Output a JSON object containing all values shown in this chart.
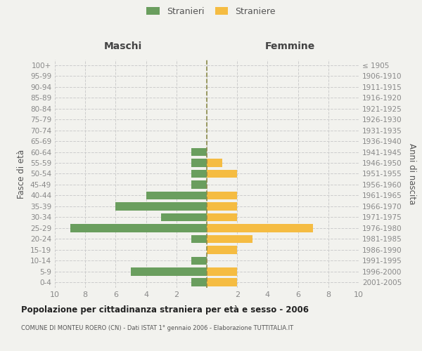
{
  "age_groups": [
    "0-4",
    "5-9",
    "10-14",
    "15-19",
    "20-24",
    "25-29",
    "30-34",
    "35-39",
    "40-44",
    "45-49",
    "50-54",
    "55-59",
    "60-64",
    "65-69",
    "70-74",
    "75-79",
    "80-84",
    "85-89",
    "90-94",
    "95-99",
    "100+"
  ],
  "birth_years": [
    "2001-2005",
    "1996-2000",
    "1991-1995",
    "1986-1990",
    "1981-1985",
    "1976-1980",
    "1971-1975",
    "1966-1970",
    "1961-1965",
    "1956-1960",
    "1951-1955",
    "1946-1950",
    "1941-1945",
    "1936-1940",
    "1931-1935",
    "1926-1930",
    "1921-1925",
    "1916-1920",
    "1911-1915",
    "1906-1910",
    "≤ 1905"
  ],
  "males": [
    1,
    5,
    1,
    0,
    1,
    9,
    3,
    6,
    4,
    1,
    1,
    1,
    1,
    0,
    0,
    0,
    0,
    0,
    0,
    0,
    0
  ],
  "females": [
    2,
    2,
    0,
    2,
    3,
    7,
    2,
    2,
    2,
    0,
    2,
    1,
    0,
    0,
    0,
    0,
    0,
    0,
    0,
    0,
    0
  ],
  "male_color": "#6a9e5e",
  "female_color": "#f5bc42",
  "background_color": "#f2f2ee",
  "grid_color": "#cccccc",
  "center_line_color": "#8b8b4b",
  "title": "Popolazione per cittadinanza straniera per età e sesso - 2006",
  "subtitle": "COMUNE DI MONTEU ROERO (CN) - Dati ISTAT 1° gennaio 2006 - Elaborazione TUTTITALIA.IT",
  "xlabel_left": "Maschi",
  "xlabel_right": "Femmine",
  "ylabel_left": "Fasce di età",
  "ylabel_right": "Anni di nascita",
  "legend_male": "Stranieri",
  "legend_female": "Straniere",
  "xlim": 10,
  "xtick_vals": [
    -10,
    -8,
    -6,
    -4,
    -2,
    0,
    2,
    4,
    6,
    8,
    10
  ],
  "xtick_labels": [
    "10",
    "8",
    "6",
    "4",
    "2",
    "",
    "2",
    "4",
    "6",
    "8",
    "10"
  ]
}
